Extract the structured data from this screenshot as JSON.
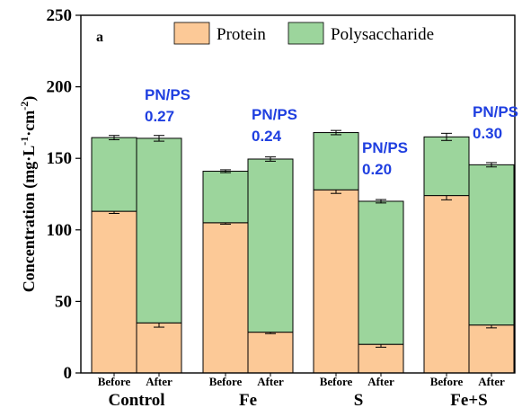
{
  "chart_data": {
    "type": "bar",
    "stacked": true,
    "panel_label": "a",
    "ylabel": "Concentration (mg·L⁻¹·cm⁻²)",
    "ylabel_parts": [
      "Concentration (mg·L",
      "-1",
      "·cm",
      "-2",
      ")"
    ],
    "ylim": [
      0,
      250
    ],
    "yticks": [
      0,
      50,
      100,
      150,
      200,
      250
    ],
    "legend_position": "top-center",
    "colors": {
      "protein_fill": "#fcc997",
      "polysaccharide_fill": "#9cd59c",
      "ratio_text": "#1f3fe0"
    },
    "groups": [
      "Control",
      "Fe",
      "S",
      "Fe+S"
    ],
    "subcategories": [
      "Before",
      "After"
    ],
    "categories": [
      "Before",
      "After",
      "Before",
      "After",
      "Before",
      "After",
      "Before",
      "After"
    ],
    "series": [
      {
        "name": "Protein",
        "values": [
          113,
          35,
          105,
          28.5,
          128,
          20,
          124,
          33.5
        ],
        "errors": [
          1.5,
          3,
          1,
          1,
          2.5,
          2,
          3,
          2
        ]
      },
      {
        "name": "Polysaccharide",
        "values": [
          51.5,
          129,
          36,
          121,
          40,
          100,
          41,
          112
        ],
        "errors": [
          1.5,
          2,
          1,
          1.5,
          1.5,
          1.2,
          2.5,
          1.5
        ]
      }
    ],
    "annotations": [
      {
        "label": "PN/PS",
        "value": "0.27"
      },
      {
        "label": "PN/PS",
        "value": "0.24"
      },
      {
        "label": "PN/PS",
        "value": "0.20"
      },
      {
        "label": "PN/PS",
        "value": "0.30"
      }
    ]
  }
}
